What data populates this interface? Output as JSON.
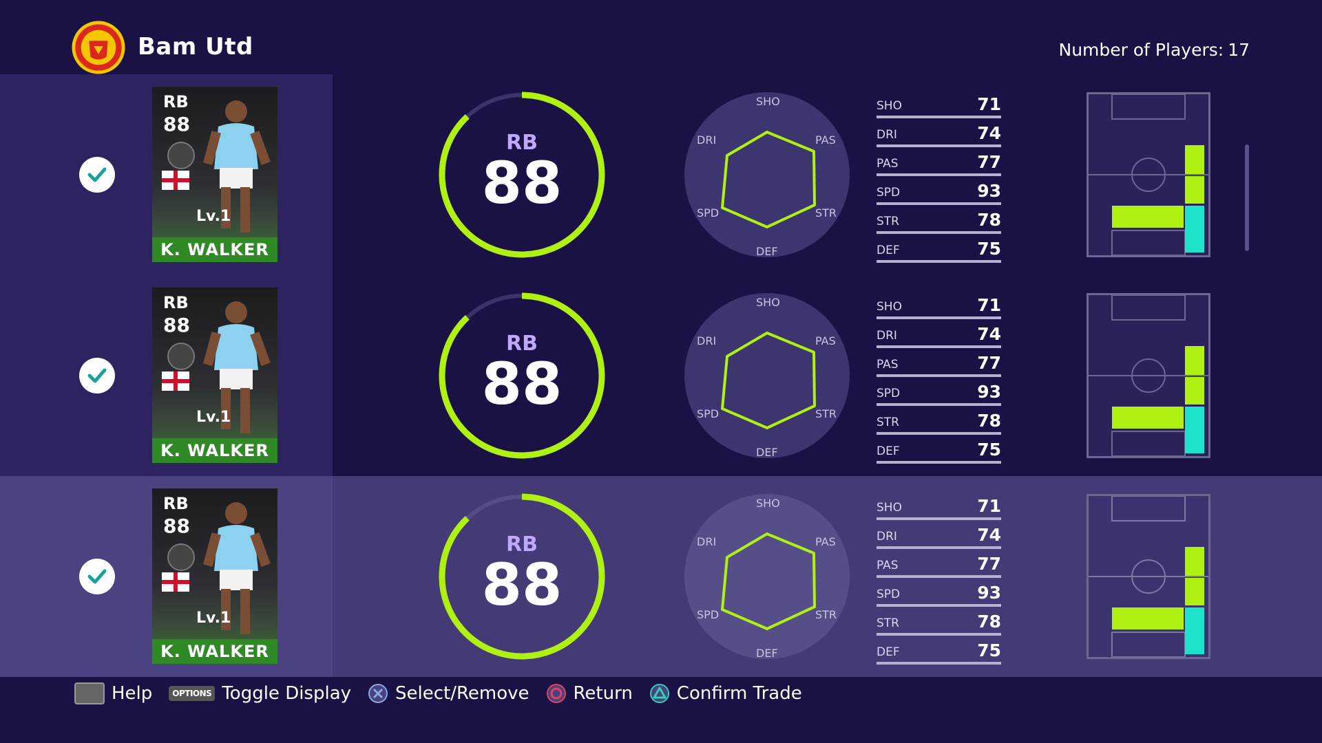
{
  "header": {
    "club_name": "Bam Utd",
    "players_label": "Number of Players:",
    "players_count": "17"
  },
  "colors": {
    "accent_green": "#b0f012",
    "ring_track": "#3a3468",
    "radar_line": "#b0f012",
    "cyan": "#1ee2cc"
  },
  "rows": [
    {
      "checked": true,
      "card": {
        "position": "RB",
        "rating": "88",
        "level": "Lv.1",
        "name": "K. WALKER"
      },
      "ring": {
        "position": "RB",
        "rating": "88",
        "progress": 0.88
      },
      "radar_labels": {
        "sho": "SHO",
        "pas": "PAS",
        "str": "STR",
        "def": "DEF",
        "spd": "SPD",
        "dri": "DRI"
      },
      "stats": [
        {
          "k": "SHO",
          "v": "71"
        },
        {
          "k": "DRI",
          "v": "74"
        },
        {
          "k": "PAS",
          "v": "77"
        },
        {
          "k": "SPD",
          "v": "93"
        },
        {
          "k": "STR",
          "v": "78"
        },
        {
          "k": "DEF",
          "v": "75"
        }
      ]
    },
    {
      "checked": true,
      "card": {
        "position": "RB",
        "rating": "88",
        "level": "Lv.1",
        "name": "K. WALKER"
      },
      "ring": {
        "position": "RB",
        "rating": "88",
        "progress": 0.88
      },
      "radar_labels": {
        "sho": "SHO",
        "pas": "PAS",
        "str": "STR",
        "def": "DEF",
        "spd": "SPD",
        "dri": "DRI"
      },
      "stats": [
        {
          "k": "SHO",
          "v": "71"
        },
        {
          "k": "DRI",
          "v": "74"
        },
        {
          "k": "PAS",
          "v": "77"
        },
        {
          "k": "SPD",
          "v": "93"
        },
        {
          "k": "STR",
          "v": "78"
        },
        {
          "k": "DEF",
          "v": "75"
        }
      ]
    },
    {
      "checked": true,
      "card": {
        "position": "RB",
        "rating": "88",
        "level": "Lv.1",
        "name": "K. WALKER"
      },
      "ring": {
        "position": "RB",
        "rating": "88",
        "progress": 0.88
      },
      "radar_labels": {
        "sho": "SHO",
        "pas": "PAS",
        "str": "STR",
        "def": "DEF",
        "spd": "SPD",
        "dri": "DRI"
      },
      "stats": [
        {
          "k": "SHO",
          "v": "71"
        },
        {
          "k": "DRI",
          "v": "74"
        },
        {
          "k": "PAS",
          "v": "77"
        },
        {
          "k": "SPD",
          "v": "93"
        },
        {
          "k": "STR",
          "v": "78"
        },
        {
          "k": "DEF",
          "v": "75"
        }
      ]
    }
  ],
  "footer": {
    "help": "Help",
    "options_icon": "OPTIONS",
    "toggle_display": "Toggle Display",
    "select_remove": "Select/Remove",
    "return": "Return",
    "confirm_trade": "Confirm Trade"
  }
}
